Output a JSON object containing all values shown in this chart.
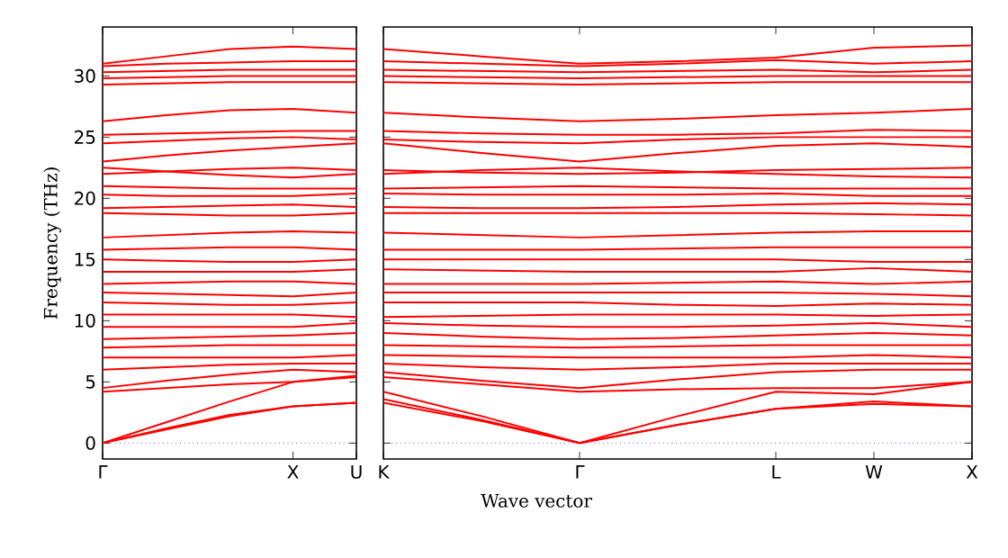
{
  "chart_data": [
    {
      "type": "line",
      "ylabel": "Frequency (THz)",
      "categories": [
        "Γ",
        null,
        null,
        "X",
        "U"
      ],
      "ylim": [
        -1.3,
        34
      ],
      "yticks": [
        0,
        5,
        10,
        15,
        20,
        25,
        30
      ],
      "grid": false,
      "marker": "none",
      "line_style": "solid",
      "ref_lines": [
        {
          "axis": "y",
          "value": 0,
          "color": "#0000ff",
          "line_style": "dotted"
        }
      ],
      "series": [
        {
          "color": "#ff0000",
          "values": [
            0,
            1.2,
            2.3,
            3,
            3.3
          ]
        },
        {
          "color": "#ff0000",
          "values": [
            0,
            1.1,
            2.2,
            3,
            3.3
          ]
        },
        {
          "color": "#ff0000",
          "values": [
            0,
            1.7,
            3.4,
            5,
            5.5
          ]
        },
        {
          "color": "#ff0000",
          "values": [
            4.2,
            4.5,
            4.8,
            5,
            5.4
          ]
        },
        {
          "color": "#ff0000",
          "values": [
            4.5,
            5.1,
            5.6,
            6,
            5.8
          ]
        },
        {
          "color": "#ff0000",
          "values": [
            6,
            6.2,
            6.4,
            6.5,
            6.5
          ]
        },
        {
          "color": "#ff0000",
          "values": [
            7,
            7,
            7,
            7,
            7.2
          ]
        },
        {
          "color": "#ff0000",
          "values": [
            7.8,
            7.9,
            8,
            8,
            8
          ]
        },
        {
          "color": "#ff0000",
          "values": [
            8.5,
            8.6,
            8.7,
            8.8,
            9
          ]
        },
        {
          "color": "#ff0000",
          "values": [
            9.5,
            9.5,
            9.5,
            9.5,
            9.8
          ]
        },
        {
          "color": "#ff0000",
          "values": [
            10.5,
            10.5,
            10.5,
            10.5,
            10.3
          ]
        },
        {
          "color": "#ff0000",
          "values": [
            11.5,
            11.4,
            11.3,
            11.3,
            11.5
          ]
        },
        {
          "color": "#ff0000",
          "values": [
            12.3,
            12.2,
            12.1,
            12,
            12.3
          ]
        },
        {
          "color": "#ff0000",
          "values": [
            13,
            13.1,
            13.2,
            13.2,
            13
          ]
        },
        {
          "color": "#ff0000",
          "values": [
            14,
            14,
            14,
            14,
            14.2
          ]
        },
        {
          "color": "#ff0000",
          "values": [
            15,
            14.9,
            14.8,
            14.8,
            15
          ]
        },
        {
          "color": "#ff0000",
          "values": [
            15.8,
            15.9,
            16,
            16,
            15.8
          ]
        },
        {
          "color": "#ff0000",
          "values": [
            16.8,
            17,
            17.2,
            17.3,
            17.2
          ]
        },
        {
          "color": "#ff0000",
          "values": [
            18.8,
            18.7,
            18.6,
            18.6,
            18.8
          ]
        },
        {
          "color": "#ff0000",
          "values": [
            19.2,
            19.3,
            19.4,
            19.5,
            19.3
          ]
        },
        {
          "color": "#ff0000",
          "values": [
            20.3,
            20.2,
            20.2,
            20.2,
            20.4
          ]
        },
        {
          "color": "#ff0000",
          "values": [
            21,
            20.9,
            20.8,
            20.8,
            20.8
          ]
        },
        {
          "color": "#ff0000",
          "values": [
            22.5,
            22.2,
            21.9,
            21.7,
            22
          ]
        },
        {
          "color": "#ff0000",
          "values": [
            22,
            22.2,
            22.4,
            22.5,
            22.3
          ]
        },
        {
          "color": "#ff0000",
          "values": [
            23,
            23.5,
            23.9,
            24.2,
            24.5
          ]
        },
        {
          "color": "#ff0000",
          "values": [
            24.5,
            24.7,
            24.9,
            25,
            24.8
          ]
        },
        {
          "color": "#ff0000",
          "values": [
            25.2,
            25.3,
            25.4,
            25.5,
            25.5
          ]
        },
        {
          "color": "#ff0000",
          "values": [
            26.3,
            26.8,
            27.2,
            27.3,
            27
          ]
        },
        {
          "color": "#ff0000",
          "values": [
            29.3,
            29.4,
            29.5,
            29.5,
            29.5
          ]
        },
        {
          "color": "#ff0000",
          "values": [
            29.8,
            29.9,
            30,
            30,
            30
          ]
        },
        {
          "color": "#ff0000",
          "values": [
            30.3,
            30.4,
            30.5,
            30.5,
            30.5
          ]
        },
        {
          "color": "#ff0000",
          "values": [
            30.8,
            31,
            31.1,
            31.2,
            31.2
          ]
        },
        {
          "color": "#ff0000",
          "values": [
            31,
            31.6,
            32.2,
            32.4,
            32.2
          ]
        }
      ]
    },
    {
      "type": "line",
      "xlabel": "Wave vector",
      "categories": [
        "K",
        null,
        "Γ",
        null,
        "L",
        "W",
        "X"
      ],
      "ylim": [
        -1.3,
        34
      ],
      "yticks": [
        {
          "value": 0,
          "label": null
        },
        {
          "value": 5,
          "label": null
        },
        {
          "value": 10,
          "label": null
        },
        {
          "value": 15,
          "label": null
        },
        {
          "value": 20,
          "label": null
        },
        {
          "value": 25,
          "label": null
        },
        {
          "value": 30,
          "label": null
        }
      ],
      "tick_labels": "x",
      "grid": false,
      "marker": "none",
      "line_style": "solid",
      "ref_lines": [
        {
          "axis": "y",
          "value": 0,
          "color": "#0000ff",
          "line_style": "dotted"
        }
      ],
      "series": [
        {
          "color": "#ff0000",
          "values": [
            3.3,
            1.8,
            0,
            1.5,
            2.8,
            3.2,
            3.0
          ]
        },
        {
          "color": "#ff0000",
          "values": [
            3.6,
            1.9,
            0,
            1.5,
            2.8,
            3.4,
            3.0
          ]
        },
        {
          "color": "#ff0000",
          "values": [
            4.2,
            2.2,
            0,
            2.2,
            4.2,
            4.0,
            5.0
          ]
        },
        {
          "color": "#ff0000",
          "values": [
            5.4,
            4.8,
            4.2,
            4.4,
            4.5,
            4.5,
            5
          ]
        },
        {
          "color": "#ff0000",
          "values": [
            5.8,
            5.1,
            4.5,
            5.2,
            5.8,
            6,
            6
          ]
        },
        {
          "color": "#ff0000",
          "values": [
            6.5,
            6.2,
            6,
            6.2,
            6.5,
            6.5,
            6.5
          ]
        },
        {
          "color": "#ff0000",
          "values": [
            7.2,
            7.1,
            7,
            7,
            7,
            7.2,
            7
          ]
        },
        {
          "color": "#ff0000",
          "values": [
            8,
            7.9,
            7.8,
            7.9,
            8,
            8,
            8
          ]
        },
        {
          "color": "#ff0000",
          "values": [
            9,
            8.7,
            8.5,
            8.6,
            8.8,
            9,
            8.8
          ]
        },
        {
          "color": "#ff0000",
          "values": [
            9.8,
            9.6,
            9.5,
            9.5,
            9.6,
            9.8,
            9.5
          ]
        },
        {
          "color": "#ff0000",
          "values": [
            10.3,
            10.4,
            10.5,
            10.5,
            10.5,
            10.4,
            10.5
          ]
        },
        {
          "color": "#ff0000",
          "values": [
            11.5,
            11.5,
            11.5,
            11.3,
            11.2,
            11.4,
            11.3
          ]
        },
        {
          "color": "#ff0000",
          "values": [
            12.3,
            12.3,
            12.3,
            12.3,
            12.3,
            12.2,
            12
          ]
        },
        {
          "color": "#ff0000",
          "values": [
            13,
            13,
            13,
            13.1,
            13.2,
            13,
            13.2
          ]
        },
        {
          "color": "#ff0000",
          "values": [
            14.2,
            14.1,
            14,
            14,
            14,
            14.3,
            14
          ]
        },
        {
          "color": "#ff0000",
          "values": [
            15,
            15,
            15,
            15,
            15,
            14.8,
            14.8
          ]
        },
        {
          "color": "#ff0000",
          "values": [
            15.8,
            15.8,
            15.8,
            15.9,
            16,
            16,
            16
          ]
        },
        {
          "color": "#ff0000",
          "values": [
            17.2,
            17,
            16.8,
            17,
            17.2,
            17.3,
            17.3
          ]
        },
        {
          "color": "#ff0000",
          "values": [
            18.8,
            18.8,
            18.8,
            18.8,
            18.8,
            18.7,
            18.6
          ]
        },
        {
          "color": "#ff0000",
          "values": [
            19.3,
            19.2,
            19.2,
            19.3,
            19.5,
            19.6,
            19.5
          ]
        },
        {
          "color": "#ff0000",
          "values": [
            20.4,
            20.3,
            20.3,
            20.3,
            20.4,
            20.2,
            20.2
          ]
        },
        {
          "color": "#ff0000",
          "values": [
            20.8,
            20.9,
            21,
            20.9,
            20.8,
            20.8,
            20.8
          ]
        },
        {
          "color": "#ff0000",
          "values": [
            22,
            22.3,
            22.5,
            22.2,
            22,
            21.8,
            21.7
          ]
        },
        {
          "color": "#ff0000",
          "values": [
            22.3,
            22.1,
            22,
            22.1,
            22.3,
            22.4,
            22.5
          ]
        },
        {
          "color": "#ff0000",
          "values": [
            24.5,
            23.7,
            23,
            23.7,
            24.3,
            24.5,
            24.2
          ]
        },
        {
          "color": "#ff0000",
          "values": [
            24.8,
            24.6,
            24.5,
            24.8,
            25,
            25,
            25
          ]
        },
        {
          "color": "#ff0000",
          "values": [
            25.5,
            25.3,
            25.2,
            25.2,
            25.3,
            25.6,
            25.5
          ]
        },
        {
          "color": "#ff0000",
          "values": [
            27,
            26.6,
            26.3,
            26.5,
            26.8,
            27,
            27.3
          ]
        },
        {
          "color": "#ff0000",
          "values": [
            29.5,
            29.4,
            29.3,
            29.4,
            29.5,
            29.5,
            29.5
          ]
        },
        {
          "color": "#ff0000",
          "values": [
            30,
            29.9,
            29.8,
            29.9,
            30,
            30,
            30
          ]
        },
        {
          "color": "#ff0000",
          "values": [
            30.5,
            30.4,
            30.3,
            30.4,
            30.5,
            30.3,
            30.5
          ]
        },
        {
          "color": "#ff0000",
          "values": [
            31.2,
            31,
            30.8,
            31,
            31.3,
            31,
            31.2
          ]
        },
        {
          "color": "#ff0000",
          "values": [
            32.2,
            31.6,
            31,
            31.2,
            31.5,
            32.3,
            32.5
          ]
        }
      ]
    }
  ]
}
